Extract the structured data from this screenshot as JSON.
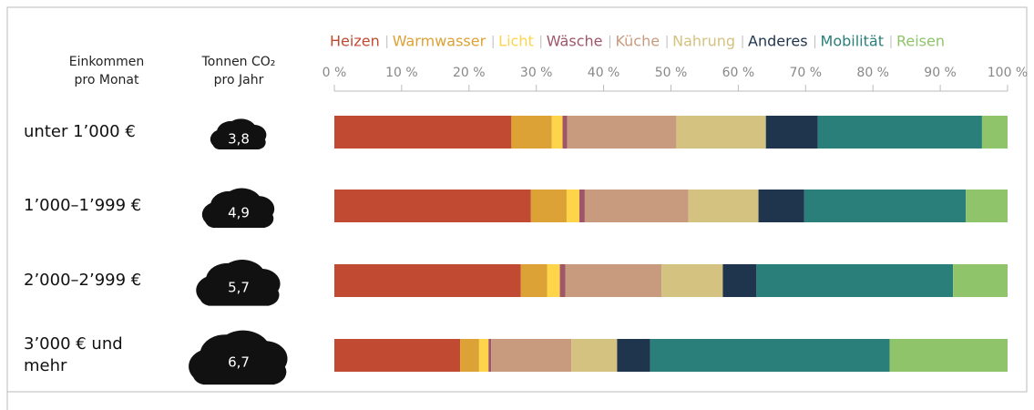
{
  "chart_data": {
    "type": "stacked_bar_horizontal",
    "column_headers": [
      [
        "Einkommen",
        "pro Monat"
      ],
      [
        "Tonnen CO₂",
        "pro Jahr"
      ]
    ],
    "categories": [
      "unter 1’000 €",
      "1’000–1’999 €",
      "2’000–2’999 €",
      "3’000 € und mehr"
    ],
    "co2_values": [
      3.8,
      4.9,
      5.7,
      6.7
    ],
    "co2_labels": [
      "3,8",
      "4,9",
      "5,7",
      "6,7"
    ],
    "xlim": [
      0,
      100
    ],
    "xticks": [
      {
        "value": 0,
        "label": "0 %"
      },
      {
        "value": 10,
        "label": "10 %"
      },
      {
        "value": 20,
        "label": "20 %"
      },
      {
        "value": 30,
        "label": "30 %"
      },
      {
        "value": 40,
        "label": "40 %"
      },
      {
        "value": 50,
        "label": "50 %"
      },
      {
        "value": 60,
        "label": "60 %"
      },
      {
        "value": 70,
        "label": "70 %"
      },
      {
        "value": 80,
        "label": "80 %"
      },
      {
        "value": 90,
        "label": "90 %"
      },
      {
        "value": 100,
        "label": "100 %"
      }
    ],
    "legend": "top",
    "series": [
      {
        "name": "Heizen",
        "color": "#c04a32",
        "values": [
          26.3,
          29.2,
          27.7,
          18.7
        ]
      },
      {
        "name": "Warmwasser",
        "color": "#dda236",
        "values": [
          6.0,
          5.3,
          3.9,
          2.8
        ]
      },
      {
        "name": "Licht",
        "color": "#fdd44a",
        "values": [
          1.6,
          1.9,
          1.9,
          1.4
        ]
      },
      {
        "name": "Wäsche",
        "color": "#a0566a",
        "values": [
          0.7,
          0.8,
          0.8,
          0.4
        ]
      },
      {
        "name": "Küche",
        "color": "#c89b7f",
        "values": [
          16.2,
          15.4,
          14.3,
          11.9
        ]
      },
      {
        "name": "Nahrung",
        "color": "#d4c280",
        "values": [
          13.3,
          10.4,
          9.1,
          6.8
        ]
      },
      {
        "name": "Anderes",
        "color": "#1f344d",
        "values": [
          7.7,
          6.8,
          5.0,
          4.9
        ]
      },
      {
        "name": "Mobilität",
        "color": "#2a7f7b",
        "values": [
          24.4,
          24.0,
          29.2,
          35.6
        ]
      },
      {
        "name": "Reisen",
        "color": "#8fc46b",
        "values": [
          3.8,
          6.2,
          8.1,
          17.5
        ]
      }
    ]
  }
}
